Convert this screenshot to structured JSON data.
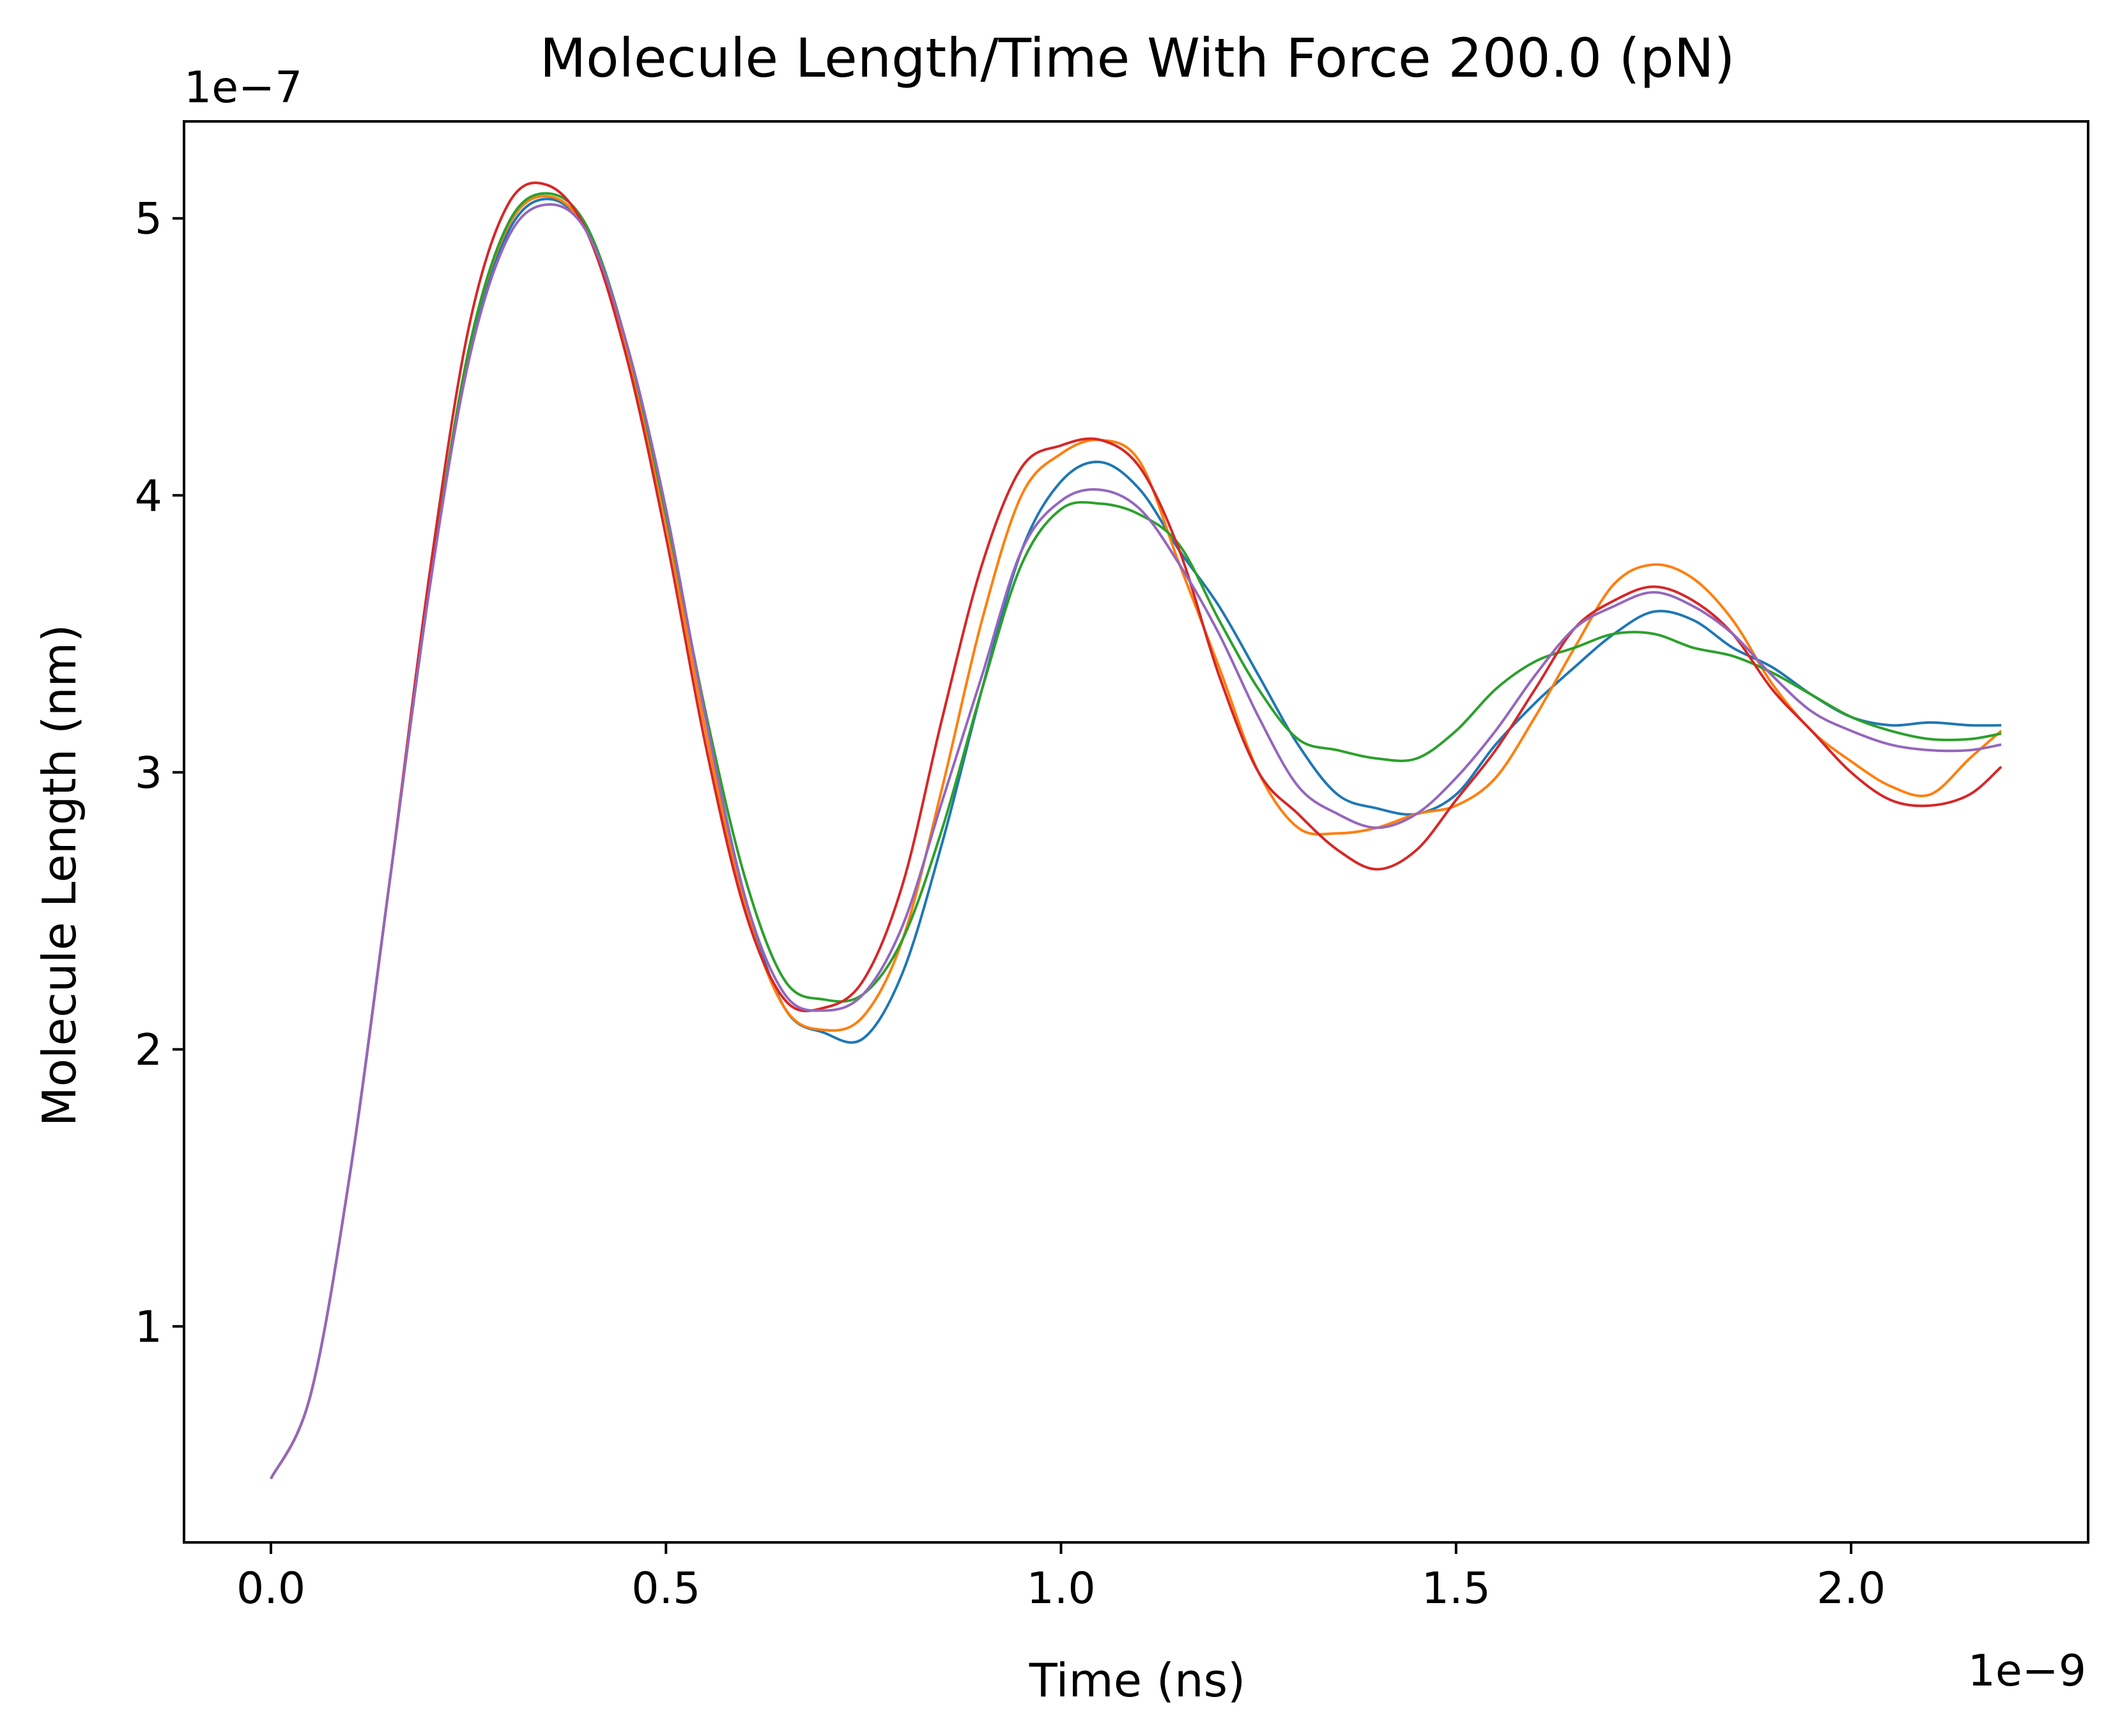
{
  "chart_data": {
    "type": "line",
    "title": "Molecule Length/Time With Force 200.0 (pN)",
    "xlabel": "Time (ns)",
    "ylabel": "Molecule Length (nm)",
    "x_offset_text": "1e−9",
    "y_offset_text": "1e−7",
    "xlim": [
      -1.1e-10,
      2.3e-09
    ],
    "ylim": [
      2.2e-08,
      5.35e-07
    ],
    "x_ticks": [
      0,
      5e-10,
      1e-09,
      1.5e-09,
      2e-09
    ],
    "x_tick_labels": [
      "0.0",
      "0.5",
      "1.0",
      "1.5",
      "2.0"
    ],
    "y_ticks": [
      1e-07,
      2e-07,
      3e-07,
      4e-07,
      5e-07
    ],
    "y_tick_labels": [
      "1",
      "2",
      "3",
      "4",
      "5"
    ],
    "grid": false,
    "legend": "none",
    "colors": [
      "#1f77b4",
      "#ff7f0e",
      "#2ca02c",
      "#d62728",
      "#9467bd"
    ],
    "x": [
      0,
      5e-11,
      1e-10,
      1.5e-10,
      2e-10,
      2.5e-10,
      3e-10,
      3.5e-10,
      4e-10,
      4.5e-10,
      5e-10,
      5.5e-10,
      6e-10,
      6.5e-10,
      7e-10,
      7.5e-10,
      8e-10,
      8.5e-10,
      9e-10,
      9.5e-10,
      1e-09,
      1.05e-09,
      1.1e-09,
      1.15e-09,
      1.2e-09,
      1.25e-09,
      1.3e-09,
      1.35e-09,
      1.4e-09,
      1.45e-09,
      1.5e-09,
      1.55e-09,
      1.6e-09,
      1.65e-09,
      1.7e-09,
      1.75e-09,
      1.8e-09,
      1.85e-09,
      1.9e-09,
      1.95e-09,
      2e-09,
      2.05e-09,
      2.1e-09,
      2.15e-09,
      2.19e-09
    ],
    "series": [
      {
        "values": [
          4.5e-08,
          7.5e-08,
          1.55e-07,
          2.6e-07,
          3.65e-07,
          4.5e-07,
          4.95e-07,
          5.07e-07,
          4.95e-07,
          4.55e-07,
          3.95e-07,
          3.2e-07,
          2.55e-07,
          2.15e-07,
          2.06e-07,
          2.04e-07,
          2.28e-07,
          2.75e-07,
          3.3e-07,
          3.8e-07,
          4.05e-07,
          4.12e-07,
          4.02e-07,
          3.8e-07,
          3.6e-07,
          3.35e-07,
          3.1e-07,
          2.92e-07,
          2.87e-07,
          2.85e-07,
          2.92e-07,
          3.1e-07,
          3.25e-07,
          3.38e-07,
          3.5e-07,
          3.58e-07,
          3.55e-07,
          3.45e-07,
          3.38e-07,
          3.28e-07,
          3.2e-07,
          3.17e-07,
          3.18e-07,
          3.17e-07,
          3.17e-07
        ]
      },
      {
        "values": [
          4.5e-08,
          7.5e-08,
          1.55e-07,
          2.6e-07,
          3.65e-07,
          4.52e-07,
          4.97e-07,
          5.08e-07,
          4.95e-07,
          4.52e-07,
          3.9e-07,
          3.15e-07,
          2.52e-07,
          2.15e-07,
          2.07e-07,
          2.12e-07,
          2.4e-07,
          2.95e-07,
          3.55e-07,
          4e-07,
          4.15e-07,
          4.2e-07,
          4.12e-07,
          3.75e-07,
          3.38e-07,
          3e-07,
          2.8e-07,
          2.78e-07,
          2.8e-07,
          2.85e-07,
          2.88e-07,
          2.98e-07,
          3.2e-07,
          3.45e-07,
          3.68e-07,
          3.75e-07,
          3.7e-07,
          3.55e-07,
          3.32e-07,
          3.15e-07,
          3.04e-07,
          2.95e-07,
          2.92e-07,
          3.05e-07,
          3.15e-07
        ]
      },
      {
        "values": [
          4.5e-08,
          7.5e-08,
          1.55e-07,
          2.6e-07,
          3.65e-07,
          4.52e-07,
          4.98e-07,
          5.09e-07,
          4.97e-07,
          4.55e-07,
          3.93e-07,
          3.22e-07,
          2.62e-07,
          2.25e-07,
          2.18e-07,
          2.2e-07,
          2.4e-07,
          2.8e-07,
          3.3e-07,
          3.75e-07,
          3.95e-07,
          3.97e-07,
          3.93e-07,
          3.82e-07,
          3.55e-07,
          3.3e-07,
          3.12e-07,
          3.08e-07,
          3.05e-07,
          3.05e-07,
          3.15e-07,
          3.3e-07,
          3.4e-07,
          3.45e-07,
          3.5e-07,
          3.5e-07,
          3.45e-07,
          3.42e-07,
          3.36e-07,
          3.28e-07,
          3.2e-07,
          3.15e-07,
          3.12e-07,
          3.12e-07,
          3.14e-07
        ]
      },
      {
        "values": [
          4.5e-08,
          7.5e-08,
          1.55e-07,
          2.6e-07,
          3.7e-07,
          4.6e-07,
          5.05e-07,
          5.12e-07,
          4.95e-07,
          4.5e-07,
          3.85e-07,
          3.1e-07,
          2.5e-07,
          2.18e-07,
          2.15e-07,
          2.25e-07,
          2.6e-07,
          3.2e-07,
          3.75e-07,
          4.1e-07,
          4.18e-07,
          4.2e-07,
          4.1e-07,
          3.8e-07,
          3.35e-07,
          3e-07,
          2.85e-07,
          2.72e-07,
          2.65e-07,
          2.72e-07,
          2.9e-07,
          3.08e-07,
          3.3e-07,
          3.52e-07,
          3.62e-07,
          3.67e-07,
          3.62e-07,
          3.5e-07,
          3.3e-07,
          3.15e-07,
          3e-07,
          2.9e-07,
          2.88e-07,
          2.92e-07,
          3.02e-07
        ]
      },
      {
        "values": [
          4.5e-08,
          7.5e-08,
          1.55e-07,
          2.6e-07,
          3.65e-07,
          4.48e-07,
          4.93e-07,
          5.05e-07,
          4.95e-07,
          4.55e-07,
          3.95e-07,
          3.2e-07,
          2.55e-07,
          2.2e-07,
          2.14e-07,
          2.2e-07,
          2.45e-07,
          2.9e-07,
          3.35e-07,
          3.8e-07,
          3.98e-07,
          4.02e-07,
          3.95e-07,
          3.75e-07,
          3.5e-07,
          3.2e-07,
          2.95e-07,
          2.85e-07,
          2.8e-07,
          2.85e-07,
          2.98e-07,
          3.15e-07,
          3.35e-07,
          3.52e-07,
          3.6e-07,
          3.65e-07,
          3.6e-07,
          3.5e-07,
          3.35e-07,
          3.22e-07,
          3.15e-07,
          3.1e-07,
          3.08e-07,
          3.08e-07,
          3.1e-07
        ]
      }
    ]
  }
}
